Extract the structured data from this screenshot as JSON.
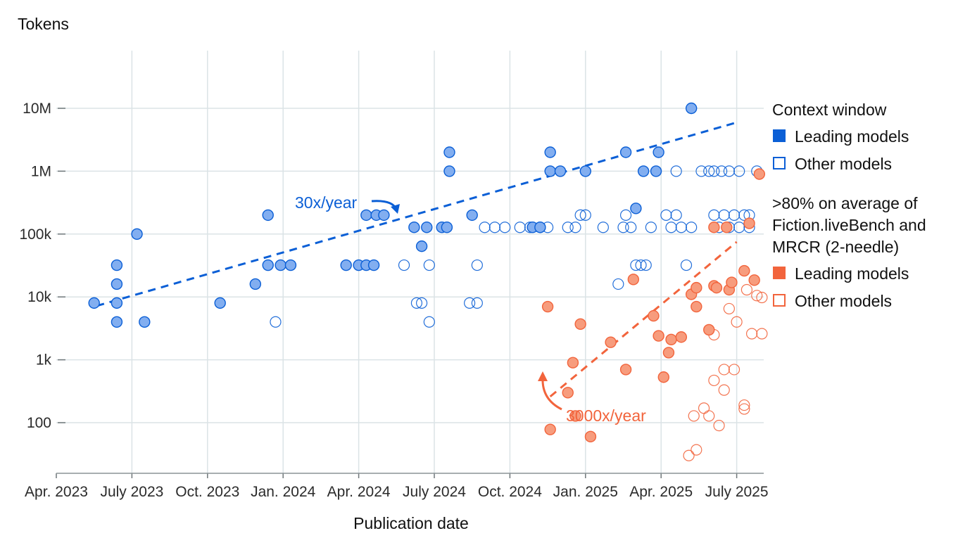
{
  "chart_data": {
    "type": "scatter",
    "title": "",
    "ylabel": "Tokens",
    "xlabel": "Publication date",
    "yscale": "log",
    "ylim": [
      20,
      100000000
    ],
    "x_ticks": [
      "Apr. 2023",
      "July 2023",
      "Oct. 2023",
      "Jan. 2024",
      "Apr. 2024",
      "July 2024",
      "Oct. 2024",
      "Jan. 2025",
      "Apr. 2025",
      "July 2025"
    ],
    "y_ticks": [
      {
        "value": 100,
        "label": "100"
      },
      {
        "value": 1000,
        "label": "1k"
      },
      {
        "value": 10000,
        "label": "10k"
      },
      {
        "value": 100000,
        "label": "100k"
      },
      {
        "value": 1000000,
        "label": "1M"
      },
      {
        "value": 10000000,
        "label": "10M"
      }
    ],
    "x_unit": "months since Apr. 2023",
    "colors": {
      "blue": "#0b5fd6",
      "blue_fill": "#82aef0",
      "orange": "#f2643c",
      "orange_fill": "#f79c7d"
    },
    "legend": {
      "group1_title": "Context window",
      "group1_leading": "Leading models",
      "group1_other": "Other models",
      "group2_title_lines": [
        ">80% on average of",
        "Fiction.liveBench and",
        "MRCR (2-needle)"
      ],
      "group2_leading": "Leading models",
      "group2_other": "Other models"
    },
    "annotations": {
      "blue_rate": "30x/year",
      "orange_rate": "3000x/year"
    },
    "trendlines": [
      {
        "name": "context-window-trend",
        "color": "blue",
        "x": [
          1.6,
          26.9
        ],
        "y": [
          7200,
          5800000
        ]
      },
      {
        "name": "fiction-bench-trend",
        "color": "orange",
        "x": [
          19.6,
          27.0
        ],
        "y": [
          260,
          75000
        ]
      }
    ],
    "series": [
      {
        "name": "Context window — Leading models",
        "style": "blue-filled",
        "points": [
          [
            1.5,
            8000
          ],
          [
            2.4,
            32000
          ],
          [
            2.4,
            16000
          ],
          [
            2.4,
            8000
          ],
          [
            2.4,
            4000
          ],
          [
            3.2,
            100000
          ],
          [
            3.5,
            4000
          ],
          [
            6.5,
            8000
          ],
          [
            7.9,
            16000
          ],
          [
            8.4,
            200000
          ],
          [
            8.4,
            32000
          ],
          [
            8.9,
            32000
          ],
          [
            9.3,
            32000
          ],
          [
            11.5,
            32000
          ],
          [
            12.0,
            32000
          ],
          [
            12.3,
            32000
          ],
          [
            12.6,
            32000
          ],
          [
            12.3,
            200000
          ],
          [
            12.7,
            200000
          ],
          [
            13.0,
            200000
          ],
          [
            14.2,
            128000
          ],
          [
            14.5,
            64000
          ],
          [
            14.7,
            128000
          ],
          [
            15.3,
            128000
          ],
          [
            15.5,
            128000
          ],
          [
            15.6,
            2000000
          ],
          [
            15.6,
            1000000
          ],
          [
            16.5,
            200000
          ],
          [
            18.9,
            128000
          ],
          [
            19.2,
            128000
          ],
          [
            19.6,
            2000000
          ],
          [
            19.6,
            1000000
          ],
          [
            20.0,
            1000000
          ],
          [
            21.0,
            1000000
          ],
          [
            22.6,
            2000000
          ],
          [
            23.0,
            256000
          ],
          [
            23.3,
            1000000
          ],
          [
            23.9,
            2000000
          ],
          [
            23.8,
            1000000
          ],
          [
            25.2,
            10000000
          ]
        ]
      },
      {
        "name": "Context window — Other models",
        "style": "blue-open",
        "points": [
          [
            8.7,
            4000
          ],
          [
            13.8,
            32000
          ],
          [
            14.3,
            8000
          ],
          [
            14.5,
            8000
          ],
          [
            14.8,
            4000
          ],
          [
            14.8,
            32000
          ],
          [
            16.7,
            32000
          ],
          [
            16.4,
            8000
          ],
          [
            16.7,
            8000
          ],
          [
            17.0,
            128000
          ],
          [
            17.4,
            128000
          ],
          [
            17.8,
            128000
          ],
          [
            18.4,
            128000
          ],
          [
            18.8,
            128000
          ],
          [
            19.2,
            128000
          ],
          [
            19.5,
            128000
          ],
          [
            20.3,
            128000
          ],
          [
            20.6,
            128000
          ],
          [
            20.8,
            200000
          ],
          [
            21.0,
            200000
          ],
          [
            21.7,
            128000
          ],
          [
            22.5,
            128000
          ],
          [
            22.8,
            128000
          ],
          [
            23.0,
            32000
          ],
          [
            23.2,
            32000
          ],
          [
            23.4,
            32000
          ],
          [
            23.6,
            128000
          ],
          [
            22.3,
            16000
          ],
          [
            22.6,
            200000
          ],
          [
            24.2,
            200000
          ],
          [
            24.4,
            128000
          ],
          [
            24.6,
            1000000
          ],
          [
            24.6,
            200000
          ],
          [
            24.8,
            128000
          ],
          [
            25.0,
            32000
          ],
          [
            25.2,
            128000
          ],
          [
            25.6,
            1000000
          ],
          [
            25.9,
            1000000
          ],
          [
            26.1,
            1000000
          ],
          [
            26.4,
            1000000
          ],
          [
            26.7,
            1000000
          ],
          [
            27.1,
            1000000
          ],
          [
            26.1,
            200000
          ],
          [
            26.5,
            200000
          ],
          [
            26.9,
            200000
          ],
          [
            27.3,
            200000
          ],
          [
            27.5,
            200000
          ],
          [
            26.3,
            128000
          ],
          [
            26.7,
            128000
          ],
          [
            27.1,
            128000
          ],
          [
            27.5,
            128000
          ],
          [
            27.8,
            1000000
          ]
        ]
      },
      {
        "name": ">80% Fiction.liveBench & MRCR — Leading models",
        "style": "orange-filled",
        "points": [
          [
            19.5,
            7000
          ],
          [
            19.6,
            78
          ],
          [
            20.3,
            300
          ],
          [
            20.5,
            900
          ],
          [
            20.6,
            128
          ],
          [
            20.8,
            3700
          ],
          [
            21.2,
            60
          ],
          [
            22.0,
            1900
          ],
          [
            22.6,
            700
          ],
          [
            22.9,
            19000
          ],
          [
            23.7,
            5000
          ],
          [
            23.9,
            2400
          ],
          [
            24.1,
            530
          ],
          [
            24.3,
            1300
          ],
          [
            24.4,
            2100
          ],
          [
            24.8,
            2300
          ],
          [
            25.2,
            11000
          ],
          [
            25.4,
            7000
          ],
          [
            25.4,
            14000
          ],
          [
            25.9,
            3000
          ],
          [
            26.1,
            128000
          ],
          [
            26.1,
            15000
          ],
          [
            26.2,
            14000
          ],
          [
            26.6,
            128000
          ],
          [
            26.7,
            13000
          ],
          [
            26.8,
            17000
          ],
          [
            27.3,
            26000
          ],
          [
            27.5,
            148000
          ],
          [
            27.7,
            18500
          ],
          [
            27.9,
            900000
          ]
        ]
      },
      {
        "name": ">80% Fiction.liveBench & MRCR — Other models",
        "style": "orange-open",
        "points": [
          [
            25.1,
            30
          ],
          [
            25.4,
            37
          ],
          [
            25.3,
            128
          ],
          [
            25.7,
            170
          ],
          [
            25.9,
            128
          ],
          [
            26.1,
            470
          ],
          [
            26.1,
            2500
          ],
          [
            26.3,
            90
          ],
          [
            26.5,
            330
          ],
          [
            26.5,
            700
          ],
          [
            26.7,
            6500
          ],
          [
            26.9,
            700
          ],
          [
            27.0,
            4000
          ],
          [
            27.3,
            165
          ],
          [
            27.3,
            190
          ],
          [
            27.4,
            13000
          ],
          [
            27.6,
            2600
          ],
          [
            27.8,
            10500
          ],
          [
            28.0,
            9800
          ],
          [
            28.0,
            2600
          ]
        ]
      }
    ]
  }
}
